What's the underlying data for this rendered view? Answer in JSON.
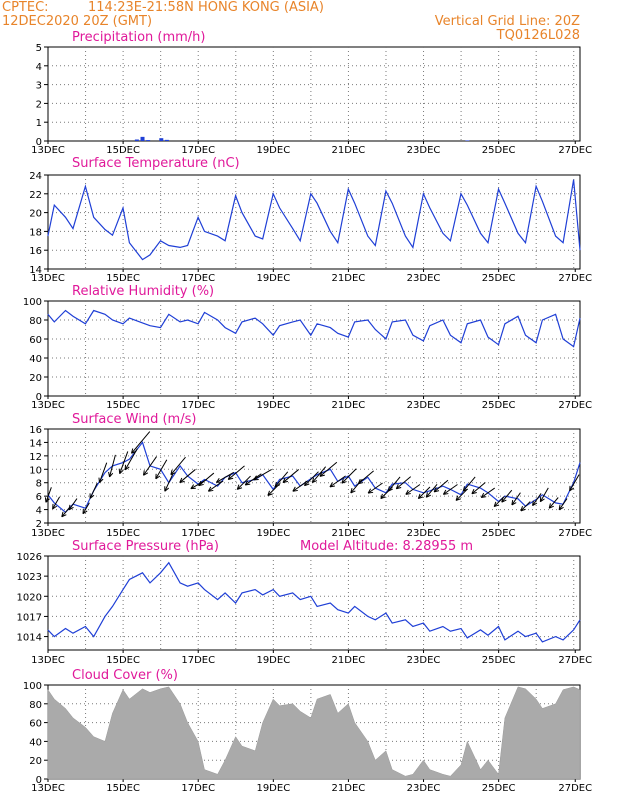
{
  "header": {
    "source": "CPTEC:",
    "location": "114:23E-21:58N   HONG KONG (ASIA)",
    "datetime": "12DEC2020 20Z (GMT)",
    "grid_line": "Vertical Grid Line: 20Z",
    "code": "TQ0126L028"
  },
  "colors": {
    "line": "#1f3fd6",
    "title": "#e0199a",
    "header": "#e8842a",
    "grid": "#7a7a7a",
    "cloud": "#aaaaaa"
  },
  "x_tick_labels": [
    "13DEC",
    "15DEC",
    "17DEC",
    "19DEC",
    "21DEC",
    "23DEC",
    "25DEC",
    "27DEC"
  ],
  "chart_data": [
    {
      "id": "precip",
      "type": "bar",
      "title": "Precipitation (mm/h)",
      "ylim": [
        0,
        5
      ],
      "yticks": [
        0,
        1,
        2,
        3,
        4,
        5
      ],
      "grid": true,
      "x_range_days": [
        12.833,
        27.0
      ],
      "values": [
        [
          15.2,
          0.08
        ],
        [
          15.35,
          0.22
        ],
        [
          15.5,
          0.05
        ],
        [
          15.85,
          0.15
        ],
        [
          16.0,
          0.06
        ],
        [
          24.0,
          0.03
        ]
      ]
    },
    {
      "id": "temp",
      "type": "line",
      "title": "Surface Temperature (nC)",
      "ylim": [
        14,
        24
      ],
      "yticks": [
        14,
        16,
        18,
        20,
        22,
        24
      ],
      "grid": true,
      "x": [
        12.83,
        13.0,
        13.3,
        13.5,
        13.83,
        14.05,
        14.35,
        14.55,
        14.83,
        15.0,
        15.35,
        15.55,
        15.83,
        16.05,
        16.35,
        16.55,
        16.83,
        17.0,
        17.35,
        17.55,
        17.83,
        18.0,
        18.35,
        18.55,
        18.83,
        19.0,
        19.35,
        19.55,
        19.83,
        20.0,
        20.35,
        20.55,
        20.83,
        21.0,
        21.35,
        21.55,
        21.83,
        22.0,
        22.35,
        22.55,
        22.83,
        23.0,
        23.35,
        23.55,
        23.83,
        24.0,
        24.35,
        24.55,
        24.83,
        25.0,
        25.35,
        25.55,
        25.83,
        26.0,
        26.35,
        26.55,
        26.83,
        27.0
      ],
      "y": [
        17.5,
        20.8,
        19.5,
        18.3,
        22.8,
        19.5,
        18.2,
        17.6,
        20.5,
        16.8,
        15.0,
        15.5,
        17.0,
        16.5,
        16.3,
        16.5,
        19.5,
        18.0,
        17.5,
        17.0,
        21.8,
        20.0,
        17.5,
        17.2,
        22.0,
        20.5,
        18.3,
        17.0,
        22.0,
        21.0,
        18.0,
        16.8,
        22.5,
        21.0,
        17.5,
        16.5,
        22.3,
        21.0,
        17.5,
        16.3,
        22.0,
        20.5,
        17.8,
        17.0,
        22.0,
        20.8,
        17.8,
        16.8,
        22.5,
        21.0,
        17.8,
        16.8,
        22.8,
        21.2,
        17.5,
        16.8,
        23.5,
        16.0
      ]
    },
    {
      "id": "rh",
      "type": "line",
      "title": "Relative Humidity (%)",
      "ylim": [
        0,
        100
      ],
      "yticks": [
        0,
        20,
        40,
        60,
        80,
        100
      ],
      "grid": true,
      "x": [
        12.83,
        13.0,
        13.3,
        13.5,
        13.83,
        14.05,
        14.35,
        14.55,
        14.83,
        15.0,
        15.35,
        15.55,
        15.83,
        16.05,
        16.35,
        16.55,
        16.83,
        17.0,
        17.35,
        17.55,
        17.83,
        18.0,
        18.35,
        18.55,
        18.83,
        19.0,
        19.35,
        19.55,
        19.83,
        20.0,
        20.35,
        20.55,
        20.83,
        21.0,
        21.35,
        21.55,
        21.83,
        22.0,
        22.35,
        22.55,
        22.83,
        23.0,
        23.35,
        23.55,
        23.83,
        24.0,
        24.35,
        24.55,
        24.83,
        25.0,
        25.35,
        25.55,
        25.83,
        26.0,
        26.35,
        26.55,
        26.83,
        27.0
      ],
      "y": [
        86,
        78,
        90,
        84,
        76,
        90,
        86,
        80,
        76,
        82,
        77,
        74,
        72,
        86,
        78,
        80,
        76,
        88,
        80,
        72,
        66,
        78,
        82,
        76,
        64,
        74,
        78,
        80,
        64,
        76,
        72,
        66,
        62,
        78,
        80,
        70,
        60,
        78,
        80,
        64,
        58,
        74,
        80,
        64,
        56,
        76,
        80,
        62,
        54,
        76,
        84,
        64,
        56,
        80,
        86,
        60,
        52,
        82
      ]
    },
    {
      "id": "wind",
      "type": "line",
      "title": "Surface Wind (m/s)",
      "ylim": [
        2,
        16
      ],
      "yticks": [
        2,
        4,
        6,
        8,
        10,
        12,
        14,
        16
      ],
      "grid": true,
      "x": [
        12.83,
        13.0,
        13.3,
        13.5,
        13.83,
        14.05,
        14.35,
        14.55,
        14.83,
        15.0,
        15.35,
        15.55,
        15.83,
        16.05,
        16.35,
        16.55,
        16.83,
        17.0,
        17.35,
        17.55,
        17.83,
        18.0,
        18.35,
        18.55,
        18.83,
        19.0,
        19.35,
        19.55,
        19.83,
        20.0,
        20.35,
        20.55,
        20.83,
        21.0,
        21.35,
        21.55,
        21.83,
        22.0,
        22.35,
        22.55,
        22.83,
        23.0,
        23.35,
        23.55,
        23.83,
        24.0,
        24.35,
        24.55,
        24.83,
        25.0,
        25.35,
        25.55,
        25.83,
        26.0,
        26.35,
        26.55,
        26.83,
        27.0
      ],
      "y": [
        6.2,
        5.0,
        3.6,
        4.8,
        4.2,
        6.8,
        9.5,
        10.5,
        11.0,
        11.5,
        14.0,
        10.5,
        10.0,
        8.0,
        10.5,
        9.0,
        7.8,
        8.5,
        7.5,
        8.8,
        9.5,
        8.0,
        8.5,
        9.2,
        7.0,
        8.5,
        9.0,
        7.5,
        8.6,
        9.2,
        10.0,
        8.2,
        9.0,
        7.5,
        8.8,
        7.2,
        6.5,
        7.8,
        8.0,
        7.0,
        6.5,
        6.8,
        7.5,
        7.0,
        6.2,
        7.8,
        7.2,
        6.5,
        5.2,
        6.0,
        5.6,
        4.5,
        5.5,
        6.2,
        5.0,
        4.8,
        8.0,
        11.0
      ]
    },
    {
      "id": "pressure",
      "type": "line",
      "title": "Surface Pressure (hPa)",
      "subtitle": "Model Altitude: 8.28955 m",
      "ylim": [
        1012,
        1026
      ],
      "yticks": [
        1014,
        1017,
        1020,
        1023,
        1026
      ],
      "grid": true,
      "x": [
        12.83,
        13.0,
        13.3,
        13.5,
        13.83,
        14.05,
        14.35,
        14.55,
        14.83,
        15.0,
        15.35,
        15.55,
        15.83,
        16.05,
        16.35,
        16.55,
        16.83,
        17.0,
        17.35,
        17.55,
        17.83,
        18.0,
        18.35,
        18.55,
        18.83,
        19.0,
        19.35,
        19.55,
        19.83,
        20.0,
        20.35,
        20.55,
        20.83,
        21.0,
        21.35,
        21.55,
        21.83,
        22.0,
        22.35,
        22.55,
        22.83,
        23.0,
        23.35,
        23.55,
        23.83,
        24.0,
        24.35,
        24.55,
        24.83,
        25.0,
        25.35,
        25.55,
        25.83,
        26.0,
        26.35,
        26.55,
        26.83,
        27.0
      ],
      "y": [
        1015.0,
        1014.0,
        1015.2,
        1014.5,
        1015.5,
        1014.0,
        1017.0,
        1018.5,
        1021.0,
        1022.5,
        1023.5,
        1022.0,
        1023.5,
        1025.0,
        1022.0,
        1021.5,
        1022.0,
        1021.0,
        1019.5,
        1020.5,
        1019.0,
        1020.5,
        1021.0,
        1020.2,
        1021.0,
        1020.0,
        1020.5,
        1019.5,
        1020.0,
        1018.5,
        1019.0,
        1018.0,
        1017.5,
        1018.5,
        1017.0,
        1016.5,
        1017.5,
        1016.0,
        1016.5,
        1015.5,
        1016.0,
        1014.8,
        1015.5,
        1014.8,
        1015.2,
        1013.8,
        1015.0,
        1014.2,
        1015.5,
        1013.5,
        1014.8,
        1014.0,
        1014.5,
        1013.2,
        1014.0,
        1013.5,
        1015.0,
        1016.5
      ]
    },
    {
      "id": "cloud",
      "type": "bar",
      "title": "Cloud Cover (%)",
      "ylim": [
        0,
        100
      ],
      "yticks": [
        0,
        20,
        40,
        60,
        80,
        100
      ],
      "grid": true,
      "x": [
        12.83,
        13.0,
        13.3,
        13.5,
        13.83,
        14.05,
        14.35,
        14.55,
        14.83,
        15.0,
        15.35,
        15.55,
        15.83,
        16.05,
        16.35,
        16.55,
        16.83,
        17.0,
        17.35,
        17.55,
        17.83,
        18.0,
        18.35,
        18.55,
        18.83,
        19.0,
        19.35,
        19.55,
        19.83,
        20.0,
        20.35,
        20.55,
        20.83,
        21.0,
        21.35,
        21.55,
        21.83,
        22.0,
        22.35,
        22.55,
        22.83,
        23.0,
        23.35,
        23.55,
        23.83,
        24.0,
        24.35,
        24.55,
        24.83,
        25.0,
        25.35,
        25.55,
        25.83,
        26.0,
        26.35,
        26.55,
        26.83,
        27.0
      ],
      "y": [
        95,
        85,
        75,
        65,
        55,
        45,
        40,
        70,
        95,
        85,
        96,
        92,
        96,
        98,
        80,
        60,
        40,
        10,
        5,
        20,
        45,
        35,
        30,
        60,
        85,
        78,
        80,
        72,
        65,
        85,
        90,
        70,
        80,
        60,
        40,
        20,
        30,
        10,
        3,
        5,
        20,
        10,
        5,
        3,
        15,
        40,
        10,
        20,
        5,
        65,
        98,
        96,
        85,
        75,
        80,
        95,
        98,
        95
      ]
    }
  ],
  "wind_barbs": {
    "x": [
      12.85,
      13.05,
      13.3,
      13.5,
      13.85,
      14.05,
      14.3,
      14.55,
      14.85,
      15.05,
      15.3,
      15.55,
      15.85,
      16.05,
      16.3,
      16.55,
      16.85,
      17.05,
      17.3,
      17.55,
      17.85,
      18.05,
      18.3,
      18.55,
      18.85,
      19.05,
      19.3,
      19.55,
      19.85,
      20.05,
      20.3,
      20.55,
      20.85,
      21.05,
      21.3,
      21.55,
      21.85,
      22.05,
      22.3,
      22.55,
      22.85,
      23.05,
      23.3,
      23.55,
      23.85,
      24.05,
      24.3,
      24.55,
      24.85,
      25.05,
      25.3,
      25.55,
      25.85,
      26.05,
      26.3,
      26.55,
      26.85
    ],
    "dir_to": [
      200,
      210,
      220,
      215,
      210,
      205,
      200,
      195,
      200,
      210,
      220,
      215,
      210,
      205,
      220,
      230,
      240,
      230,
      235,
      240,
      230,
      225,
      235,
      240,
      225,
      220,
      230,
      235,
      225,
      220,
      230,
      235,
      225,
      220,
      230,
      235,
      225,
      220,
      230,
      235,
      225,
      220,
      230,
      235,
      225,
      220,
      230,
      235,
      225,
      220,
      215,
      225,
      215,
      210,
      220,
      215,
      210
    ],
    "speed": [
      6.2,
      5.0,
      3.6,
      4.8,
      4.2,
      6.8,
      9.5,
      10.5,
      11.0,
      11.5,
      14.0,
      10.5,
      10.0,
      8.0,
      10.5,
      9.0,
      7.8,
      8.5,
      7.5,
      8.8,
      9.5,
      8.0,
      8.5,
      9.2,
      7.0,
      8.5,
      9.0,
      7.5,
      8.6,
      9.2,
      10.0,
      8.2,
      9.0,
      7.5,
      8.8,
      7.2,
      6.5,
      7.8,
      8.0,
      7.0,
      6.5,
      6.8,
      7.5,
      7.0,
      6.2,
      7.8,
      7.2,
      6.5,
      5.2,
      6.0,
      5.6,
      4.5,
      5.5,
      6.2,
      5.0,
      4.8,
      8.0
    ]
  }
}
